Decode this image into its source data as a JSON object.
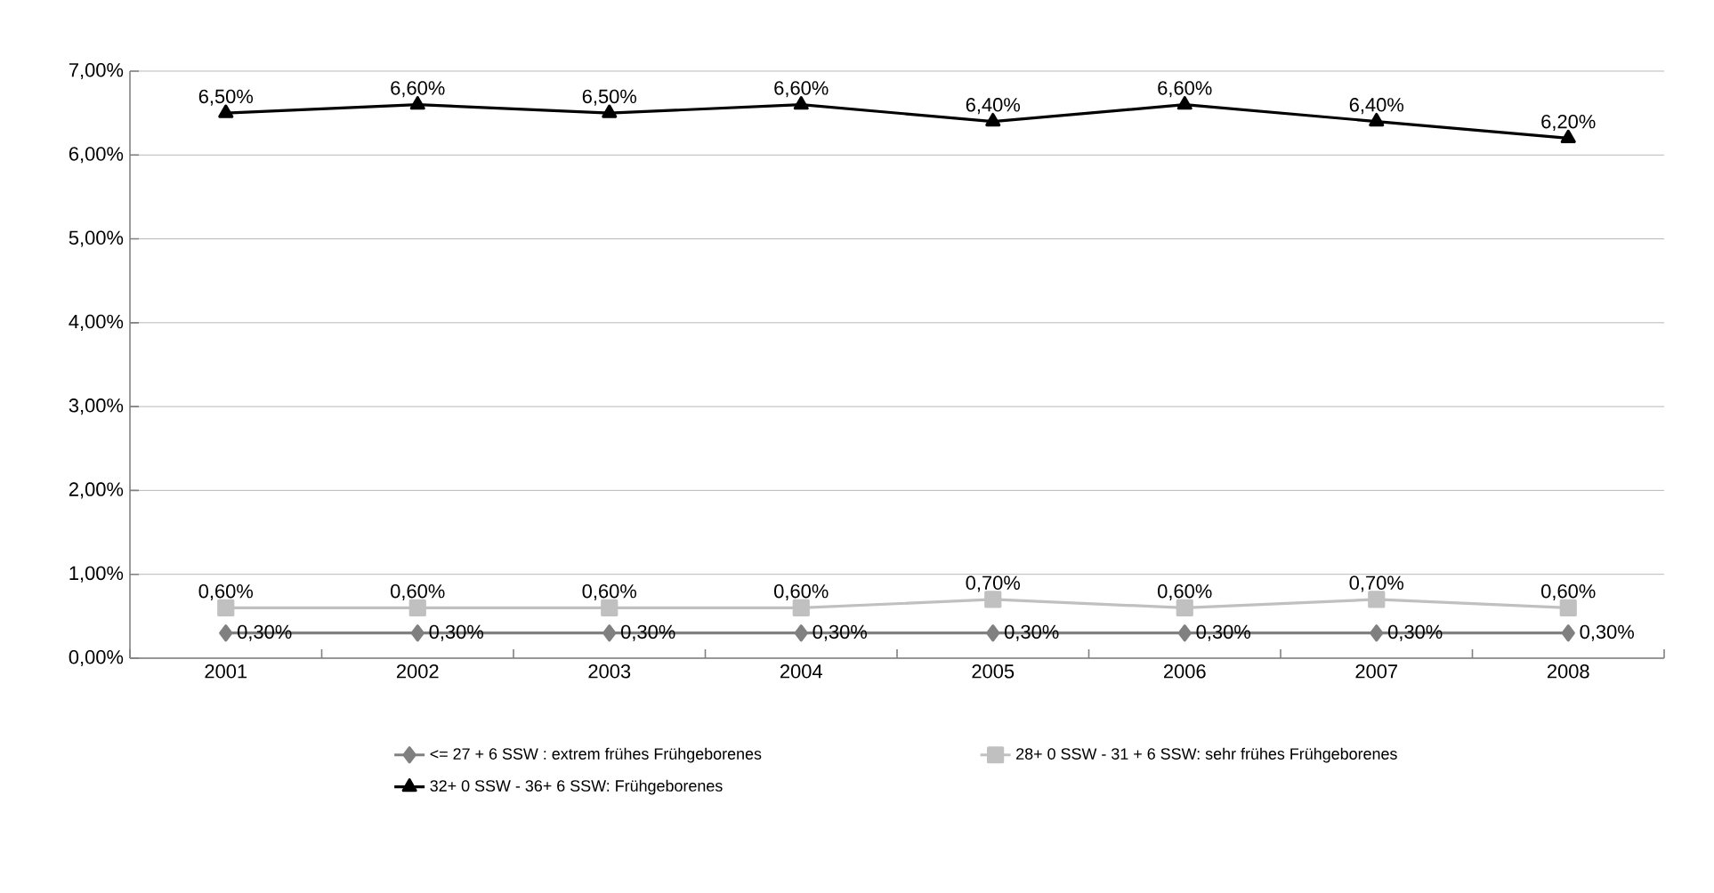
{
  "chart_data": {
    "type": "line",
    "categories": [
      "2001",
      "2002",
      "2003",
      "2004",
      "2005",
      "2006",
      "2007",
      "2008"
    ],
    "series": [
      {
        "name": "<= 27 + 6 SSW : extrem frühes Frühgeborenes",
        "color": "#808080",
        "marker": "diamond",
        "values": [
          0.3,
          0.3,
          0.3,
          0.3,
          0.3,
          0.3,
          0.3,
          0.3
        ],
        "value_labels": [
          "0,30%",
          "0,30%",
          "0,30%",
          "0,30%",
          "0,30%",
          "0,30%",
          "0,30%",
          "0,30%"
        ]
      },
      {
        "name": "28+ 0 SSW - 31 + 6 SSW: sehr frühes Frühgeborenes",
        "color": "#c0c0c0",
        "marker": "square",
        "values": [
          0.6,
          0.6,
          0.6,
          0.6,
          0.7,
          0.6,
          0.7,
          0.6
        ],
        "value_labels": [
          "0,60%",
          "0,60%",
          "0,60%",
          "0,60%",
          "0,70%",
          "0,60%",
          "0,70%",
          "0,60%"
        ]
      },
      {
        "name": "32+ 0 SSW - 36+ 6 SSW: Frühgeborenes",
        "color": "#000000",
        "marker": "triangle",
        "values": [
          6.5,
          6.6,
          6.5,
          6.6,
          6.4,
          6.6,
          6.4,
          6.2
        ],
        "value_labels": [
          "6,50%",
          "6,60%",
          "6,50%",
          "6,60%",
          "6,40%",
          "6,60%",
          "6,40%",
          "6,20%"
        ]
      }
    ],
    "ylim": [
      0,
      7
    ],
    "yticks": [
      {
        "value": 0,
        "label": "0,00%"
      },
      {
        "value": 1,
        "label": "1,00%"
      },
      {
        "value": 2,
        "label": "2,00%"
      },
      {
        "value": 3,
        "label": "3,00%"
      },
      {
        "value": 4,
        "label": "4,00%"
      },
      {
        "value": 5,
        "label": "5,00%"
      },
      {
        "value": 6,
        "label": "6,00%"
      },
      {
        "value": 7,
        "label": "7,00%"
      }
    ],
    "grid": "y",
    "legend": "bottom",
    "line_style": "solid"
  }
}
